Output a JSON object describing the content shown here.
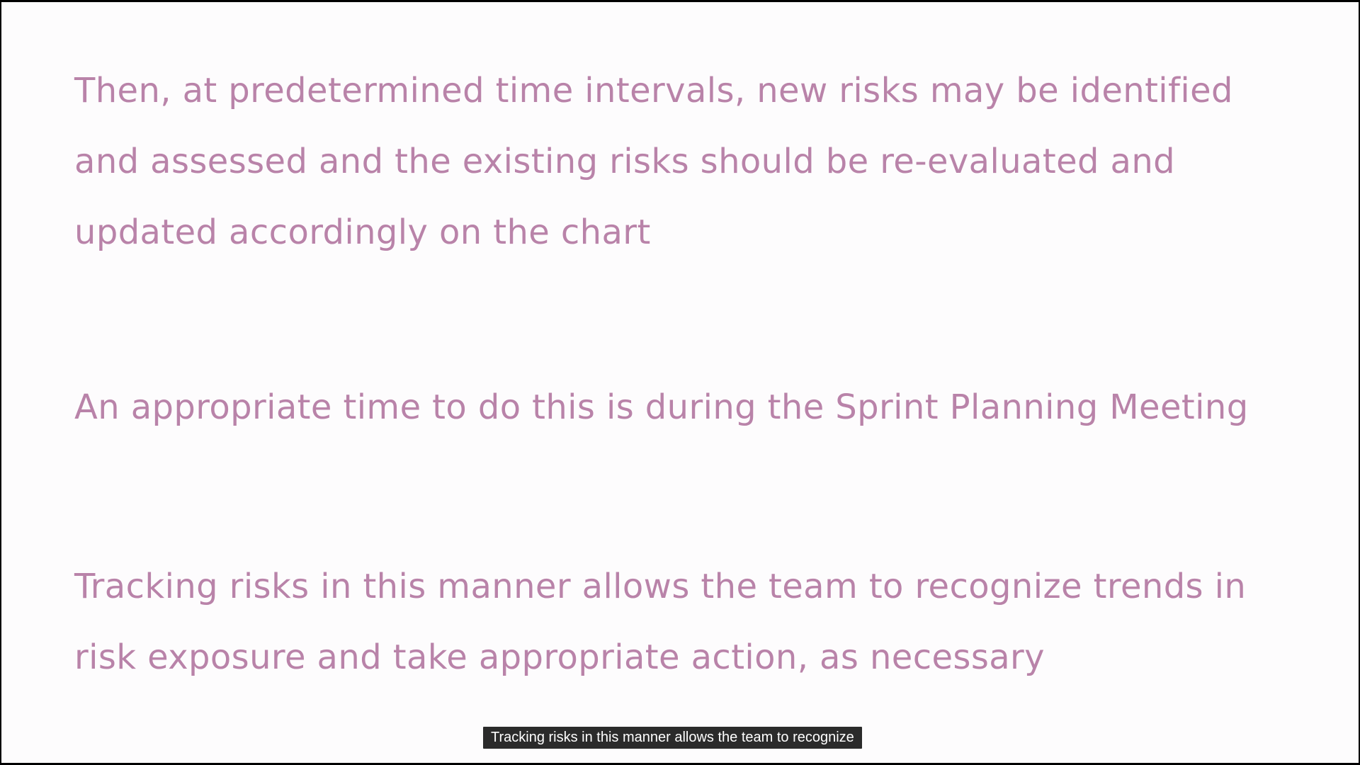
{
  "slide": {
    "paragraphs": [
      {
        "lines": [
          "Then, at predetermined time intervals, new risks may be identified",
          "and assessed and the existing risks should be re-evaluated and",
          "updated accordingly on the chart"
        ]
      },
      {
        "lines": [
          "An appropriate time to do this is during the Sprint Planning Meeting"
        ]
      },
      {
        "lines": [
          "Tracking risks in this manner allows the team to recognize trends in",
          "risk exposure and take appropriate action, as necessary"
        ]
      }
    ],
    "text_color": "#b983a9",
    "background_color": "#fdfcfd"
  },
  "caption": {
    "text": "Tracking risks in this manner allows the team to recognize"
  }
}
